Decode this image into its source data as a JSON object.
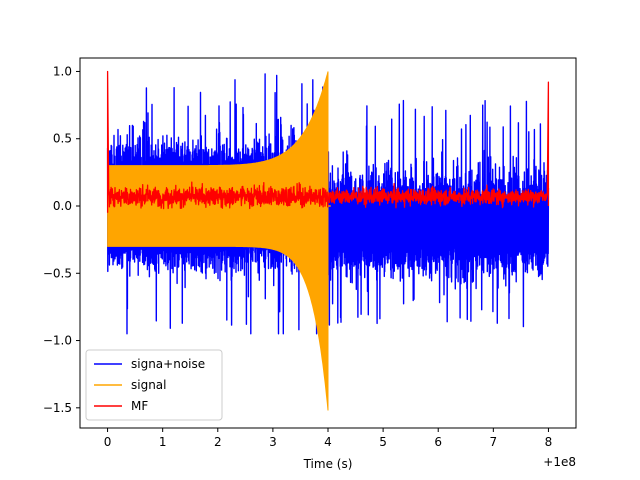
{
  "chart_data": {
    "type": "line",
    "title": "",
    "xlabel": "Time (s)",
    "ylabel": "",
    "x_offset_label": "+1e8",
    "xlim": [
      -0.5,
      8.5
    ],
    "ylim": [
      -1.65,
      1.1
    ],
    "x_ticks": [
      0,
      1,
      2,
      3,
      4,
      5,
      6,
      7,
      8
    ],
    "x_tick_labels": [
      "0",
      "1",
      "2",
      "3",
      "4",
      "5",
      "6",
      "7",
      "8"
    ],
    "y_ticks": [
      1.0,
      0.5,
      0.0,
      -0.5,
      -1.0,
      -1.5
    ],
    "y_tick_labels": [
      "1.0",
      "0.5",
      "0.0",
      "−0.5",
      "−1.0",
      "−1.5"
    ],
    "grid": false,
    "legend_position": "lower-left",
    "series": [
      {
        "name": "signa+noise",
        "color": "#0000ff",
        "x_range": [
          0,
          8
        ],
        "description_values": {
          "baseline_upper": 0.3,
          "baseline_lower": -0.3,
          "peak_max": 1.0,
          "peak_min": -0.95,
          "chirp_end_time": 4.0,
          "post_chirp_upper": 0.22,
          "post_chirp_lower": -0.55
        }
      },
      {
        "name": "signal",
        "color": "#ffa500",
        "x_range": [
          0,
          4.05
        ],
        "description_values": {
          "start_envelope": 0.3,
          "end_envelope_upper": 1.0,
          "end_envelope_lower": -1.52,
          "post_value": 0.0
        }
      },
      {
        "name": "MF",
        "color": "#ff0000",
        "x_range": [
          0,
          8
        ],
        "description_values": {
          "start_peak": 1.0,
          "end_peak": 0.92,
          "baseline_mean": 0.07,
          "baseline_spread": 0.12
        }
      }
    ]
  }
}
